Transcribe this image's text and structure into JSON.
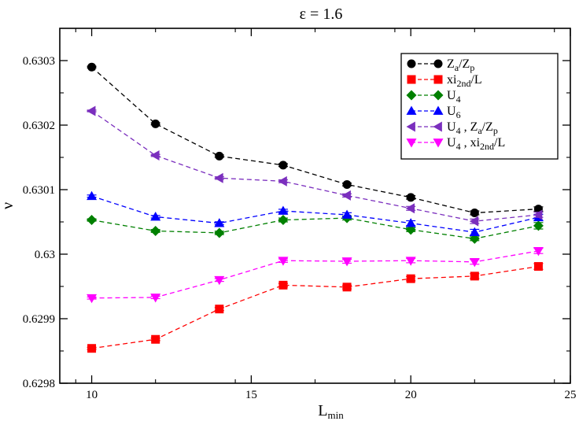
{
  "chart_data": {
    "type": "line",
    "title": "ε = 1.6",
    "xlabel": "L",
    "xlabel_sub": "min",
    "ylabel": "ν",
    "xlim": [
      9,
      25
    ],
    "ylim": [
      0.6298,
      0.63035
    ],
    "xticks": [
      10,
      15,
      20,
      25
    ],
    "ytick_values": [
      0.6298,
      0.6299,
      0.63,
      0.6301,
      0.6302,
      0.6303
    ],
    "ytick_labels": [
      "0.6298",
      "0.6299",
      "0.63",
      "0.6301",
      "0.6302",
      "0.6303"
    ],
    "x": [
      10,
      12,
      14,
      16,
      18,
      20,
      22,
      24
    ],
    "legend_position": "top-right",
    "series": [
      {
        "name": "Z_a/Z_p",
        "legend": {
          "parts": [
            {
              "t": "Z"
            },
            {
              "t": "a",
              "sub": true
            },
            {
              "t": "/Z"
            },
            {
              "t": "p",
              "sub": true
            }
          ]
        },
        "color": "#000000",
        "marker": "circle",
        "values": [
          0.63029,
          0.630202,
          0.630152,
          0.630138,
          0.630108,
          0.630088,
          0.630064,
          0.63007
        ],
        "errors": [
          1.2e-06,
          1.5e-06,
          1.8e-06,
          2.2e-06,
          2.2e-06,
          2.7e-06,
          3e-06,
          3.3e-06
        ]
      },
      {
        "name": "xi_2nd/L",
        "legend": {
          "parts": [
            {
              "t": "xi"
            },
            {
              "t": "2nd",
              "sub": true
            },
            {
              "t": "/L"
            }
          ]
        },
        "color": "#ff0000",
        "marker": "square",
        "values": [
          0.629854,
          0.629868,
          0.629915,
          0.629952,
          0.629949,
          0.629962,
          0.629966,
          0.629981
        ],
        "errors": [
          1.7e-06,
          1.9e-06,
          2.3e-06,
          2.6e-06,
          2.8e-06,
          3.3e-06,
          3.9e-06,
          4.5e-06
        ]
      },
      {
        "name": "U_4",
        "legend": {
          "parts": [
            {
              "t": "U"
            },
            {
              "t": "4",
              "sub": true
            }
          ]
        },
        "color": "#008000",
        "marker": "diamond",
        "values": [
          0.630053,
          0.630036,
          0.630033,
          0.630053,
          0.630056,
          0.630038,
          0.630024,
          0.630044
        ],
        "errors": [
          1.8e-06,
          2.2e-06,
          2.6e-06,
          3e-06,
          3e-06,
          3e-06,
          3e-06,
          5e-06
        ]
      },
      {
        "name": "U_6",
        "legend": {
          "parts": [
            {
              "t": "U"
            },
            {
              "t": "6",
              "sub": true
            }
          ]
        },
        "color": "#0000ff",
        "marker": "triangle-up",
        "values": [
          0.63009,
          0.630058,
          0.630048,
          0.630067,
          0.630061,
          0.630048,
          0.630034,
          0.630057
        ],
        "errors": [
          1.7e-06,
          1.9e-06,
          2.2e-06,
          2.6e-06,
          3.2e-06,
          3.8e-06,
          4.5e-06,
          4.7e-06
        ]
      },
      {
        "name": "U_4 , Z_a/Z_p",
        "legend": {
          "parts": [
            {
              "t": "U"
            },
            {
              "t": "4",
              "sub": true
            },
            {
              "t": " , Z"
            },
            {
              "t": "a",
              "sub": true
            },
            {
              "t": "/Z"
            },
            {
              "t": "p",
              "sub": true
            }
          ]
        },
        "color": "#7b2fbe",
        "marker": "triangle-left",
        "values": [
          0.630222,
          0.630153,
          0.630118,
          0.630113,
          0.630091,
          0.630071,
          0.630051,
          0.630061
        ],
        "errors": [
          1.3e-06,
          1.6e-06,
          1.9e-06,
          2.2e-06,
          2.5e-06,
          3e-06,
          3.5e-06,
          4e-06
        ]
      },
      {
        "name": "U_4 , xi_2nd/L",
        "legend": {
          "parts": [
            {
              "t": "U"
            },
            {
              "t": "4",
              "sub": true
            },
            {
              "t": " , xi"
            },
            {
              "t": "2nd",
              "sub": true
            },
            {
              "t": "/L"
            }
          ]
        },
        "color": "#ff00ff",
        "marker": "triangle-down",
        "values": [
          0.629932,
          0.629933,
          0.62996,
          0.62999,
          0.629989,
          0.62999,
          0.629988,
          0.630005
        ],
        "errors": [
          1.6e-06,
          1.9e-06,
          2.2e-06,
          2.7e-06,
          3e-06,
          3.3e-06,
          3.6e-06,
          4e-06
        ]
      }
    ]
  }
}
